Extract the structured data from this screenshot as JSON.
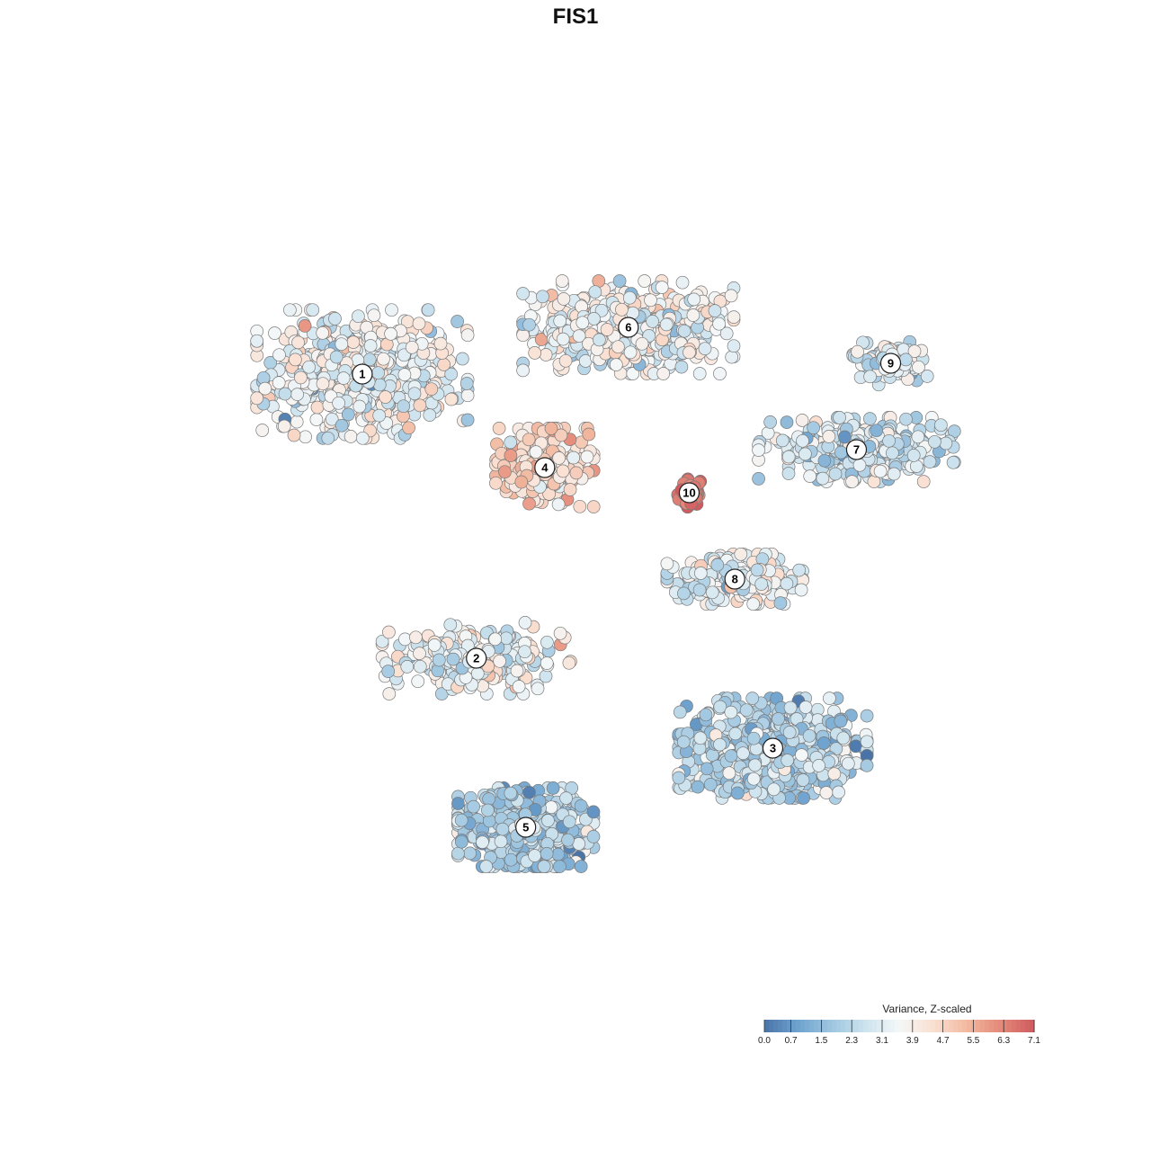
{
  "chart_data": {
    "type": "scatter",
    "title": "FIS1",
    "xlabel": "",
    "ylabel": "",
    "axes_visible": false,
    "grid": false,
    "point_style": "filled circles with grey outline",
    "colorbar": {
      "title": "Variance, Z-scaled",
      "ticks": [
        "0.0",
        "0.7",
        "1.5",
        "2.3",
        "3.1",
        "3.9",
        "4.7",
        "5.5",
        "6.3",
        "7.1"
      ],
      "range": [
        0,
        7.1
      ],
      "colors": [
        "#4a74a8",
        "#6fa3cf",
        "#9fc6e0",
        "#cde3ee",
        "#f4f7f8",
        "#fae0d2",
        "#f2b9a0",
        "#e5897a",
        "#cf5b5f"
      ],
      "placement": "bottom-right"
    },
    "clusters": [
      {
        "label": "1",
        "x": -6.2,
        "y": 5.6,
        "mean_value": 3.4,
        "spread": [
          2.8,
          1.8
        ],
        "count": 620
      },
      {
        "label": "2",
        "x": -3.2,
        "y": -2.3,
        "mean_value": 3.5,
        "spread": [
          2.5,
          1.0
        ],
        "count": 260
      },
      {
        "label": "3",
        "x": 4.6,
        "y": -4.8,
        "mean_value": 2.3,
        "spread": [
          2.5,
          1.4
        ],
        "count": 760
      },
      {
        "label": "4",
        "x": -1.4,
        "y": 3.0,
        "mean_value": 4.5,
        "spread": [
          1.3,
          1.1
        ],
        "count": 300
      },
      {
        "label": "5",
        "x": -1.9,
        "y": -7.0,
        "mean_value": 2.0,
        "spread": [
          1.8,
          1.1
        ],
        "count": 560
      },
      {
        "label": "6",
        "x": 0.8,
        "y": 6.9,
        "mean_value": 3.6,
        "spread": [
          2.8,
          1.3
        ],
        "count": 520
      },
      {
        "label": "7",
        "x": 6.8,
        "y": 3.5,
        "mean_value": 2.8,
        "spread": [
          2.6,
          0.9
        ],
        "count": 330
      },
      {
        "label": "8",
        "x": 3.6,
        "y": -0.1,
        "mean_value": 3.4,
        "spread": [
          1.8,
          0.7
        ],
        "count": 240
      },
      {
        "label": "9",
        "x": 7.7,
        "y": 5.9,
        "mean_value": 2.9,
        "spread": [
          1.0,
          0.6
        ],
        "count": 110
      },
      {
        "label": "10",
        "x": 2.4,
        "y": 2.3,
        "mean_value": 6.8,
        "spread": [
          0.3,
          0.4
        ],
        "count": 60
      }
    ],
    "xlim": [
      -11,
      11
    ],
    "ylim": [
      -11.5,
      11.5
    ]
  }
}
